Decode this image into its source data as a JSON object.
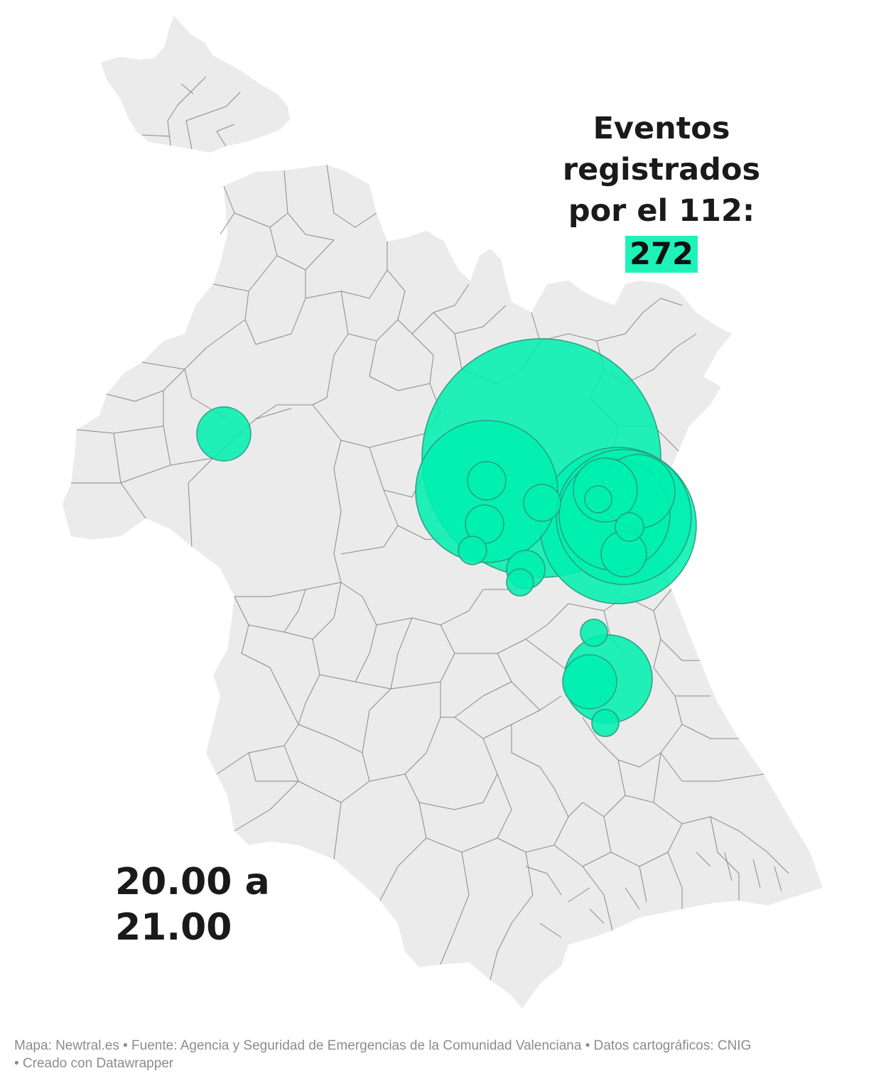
{
  "title": {
    "line1": "Eventos registrados",
    "line2": "por el 112:",
    "count": "272",
    "badge_color": "#1ff2b8"
  },
  "time_range": {
    "line1": "20.00 a",
    "line2": "21.00"
  },
  "footer": {
    "line1": "Mapa: Newtral.es • Fuente: Agencia y Seguridad de Emergencias de la Comunidad Valenciana • Datos cartográficos: CNIG",
    "line2": " • Creado con Datawrapper"
  },
  "colors": {
    "land": "#ebebeb",
    "borders": "#8a8a8a",
    "bubble_fill": "#00f0b0",
    "bubble_stroke": "#2a9e82"
  },
  "map": {
    "region": "Provincia de Valencia",
    "layers": [
      "municipal-borders",
      "event-bubbles"
    ]
  }
}
